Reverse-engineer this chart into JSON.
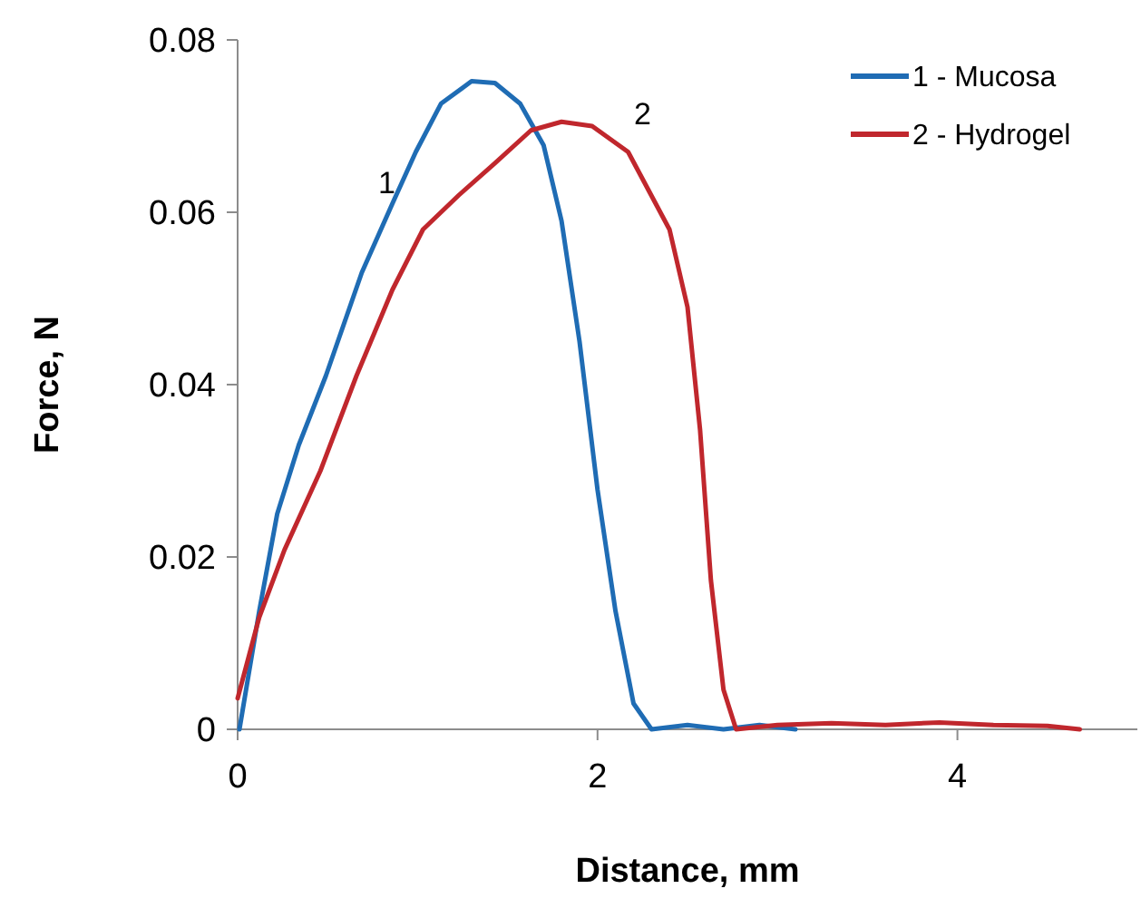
{
  "chart_data": {
    "type": "line",
    "xlabel": "Distance, mm",
    "ylabel": "Force, N",
    "xlim": [
      0,
      5
    ],
    "ylim": [
      0,
      0.08
    ],
    "xticks": [
      0,
      2,
      4
    ],
    "yticks": [
      0,
      0.02,
      0.04,
      0.06,
      0.08
    ],
    "grid": false,
    "legend": "top right",
    "marker": "none",
    "line_style": "solid",
    "annotations": [
      {
        "text": "1",
        "x": 0.99,
        "y": 0.067
      },
      {
        "text": "2",
        "x": 2.17,
        "y": 0.067
      }
    ],
    "series": [
      {
        "name": "1 - Mucosa",
        "color": "#1f6cb4",
        "x": [
          0.01,
          0.12,
          0.22,
          0.34,
          0.49,
          0.69,
          0.86,
          0.99,
          1.13,
          1.3,
          1.43,
          1.57,
          1.7,
          1.8,
          1.9,
          2.0,
          2.1,
          2.2,
          2.3,
          2.5,
          2.7,
          2.9,
          3.1
        ],
        "values": [
          0,
          0.0137,
          0.025,
          0.033,
          0.041,
          0.053,
          0.061,
          0.067,
          0.0726,
          0.0752,
          0.075,
          0.0726,
          0.0678,
          0.059,
          0.045,
          0.0278,
          0.0137,
          0.003,
          0,
          0.0005,
          0,
          0.0005,
          0
        ]
      },
      {
        "name": "2 - Hydrogel",
        "color": "#c0272d",
        "x": [
          0,
          0.12,
          0.26,
          0.46,
          0.66,
          0.86,
          1.03,
          1.23,
          1.43,
          1.63,
          1.8,
          1.97,
          2.17,
          2.4,
          2.5,
          2.57,
          2.63,
          2.7,
          2.77,
          3.0,
          3.3,
          3.6,
          3.9,
          4.2,
          4.5,
          4.68
        ],
        "values": [
          0.0036,
          0.013,
          0.0208,
          0.03,
          0.041,
          0.051,
          0.058,
          0.062,
          0.0657,
          0.0695,
          0.0705,
          0.07,
          0.067,
          0.058,
          0.049,
          0.0347,
          0.0173,
          0.0046,
          0,
          0.0005,
          0.0007,
          0.0005,
          0.0008,
          0.0005,
          0.0004,
          0
        ]
      }
    ]
  }
}
